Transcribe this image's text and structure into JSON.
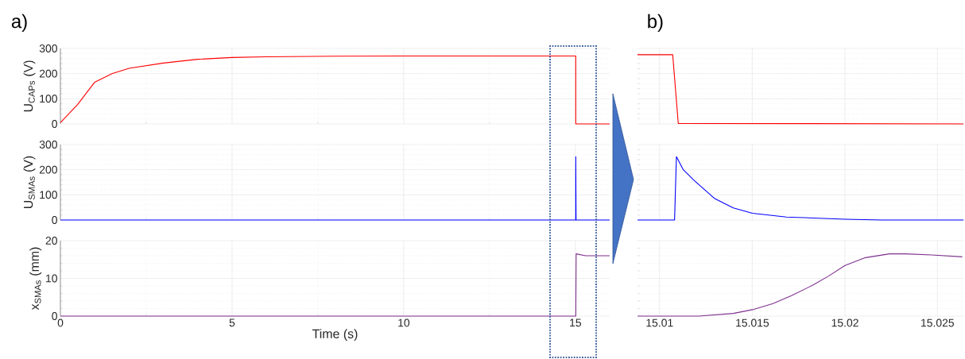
{
  "chart_data": [
    {
      "type": "line",
      "title": "a)",
      "ylabel": "U$_{CAPs}$ (V)",
      "xlim": [
        0,
        16
      ],
      "xticks": [
        0,
        5,
        10,
        15
      ],
      "ylim": [
        0,
        300
      ],
      "yticks": [
        0,
        100,
        200,
        300
      ],
      "grid": true,
      "tick_labels": "y",
      "series": [
        {
          "color": "#ff0000",
          "x": [
            0,
            0.5,
            1,
            1.5,
            2,
            3,
            4,
            5,
            6,
            8,
            10,
            15.011,
            15.011,
            16
          ],
          "values": [
            5,
            77,
            166,
            200,
            221,
            242,
            257,
            264,
            267,
            269,
            270,
            270,
            0,
            0
          ]
        }
      ]
    },
    {
      "type": "line",
      "ylabel": "U$_{SMAs}$ (V)",
      "xlim": [
        0,
        16
      ],
      "xticks": [
        0,
        5,
        10,
        15
      ],
      "ylim": [
        0,
        300
      ],
      "yticks": [
        0,
        100,
        200,
        300
      ],
      "grid": true,
      "tick_labels": "y",
      "series": [
        {
          "color": "#0000ff",
          "x": [
            0,
            15.0108,
            15.011,
            15.02,
            16
          ],
          "values": [
            0,
            0,
            252,
            0,
            0
          ]
        }
      ]
    },
    {
      "type": "line",
      "xlabel": "Time (s)",
      "ylabel": "x$_{SMAs}$ (mm)",
      "xlim": [
        0,
        16
      ],
      "xticks": [
        0,
        5,
        10,
        15
      ],
      "ylim": [
        0,
        20
      ],
      "yticks": [
        0,
        10,
        20
      ],
      "grid": true,
      "series": [
        {
          "color": "#7e2f8e",
          "x": [
            0,
            15.012,
            15.023,
            15.3,
            16
          ],
          "values": [
            0,
            0,
            16.5,
            16,
            16
          ]
        }
      ]
    },
    {
      "type": "line",
      "title": "b)",
      "xlim": [
        15.0088,
        15.0264
      ],
      "xticks": [
        15.01,
        15.015,
        15.02,
        15.025
      ],
      "ylim": [
        0,
        300
      ],
      "yticks": [
        0,
        100,
        200,
        300
      ],
      "grid": true,
      "tick_labels": false,
      "series": [
        {
          "color": "#ff0000",
          "x": [
            15.0088,
            15.0107,
            15.011,
            15.0264
          ],
          "values": [
            275,
            275,
            2,
            0
          ]
        }
      ]
    },
    {
      "type": "line",
      "xlim": [
        15.0088,
        15.0264
      ],
      "xticks": [
        15.01,
        15.015,
        15.02,
        15.025
      ],
      "ylim": [
        0,
        300
      ],
      "yticks": [
        0,
        100,
        200,
        300
      ],
      "grid": true,
      "tick_labels": false,
      "series": [
        {
          "color": "#0000ff",
          "x": [
            15.0088,
            15.0108,
            15.0109,
            15.01126,
            15.01183,
            15.01297,
            15.01397,
            15.015,
            15.01683,
            15.02,
            15.022,
            15.0264
          ],
          "values": [
            0,
            0,
            252,
            201,
            159,
            85,
            48,
            27,
            12,
            3,
            0,
            0
          ]
        }
      ]
    },
    {
      "type": "line",
      "xlim": [
        15.0088,
        15.0264
      ],
      "xticks": [
        15.01,
        15.015,
        15.02,
        15.025
      ],
      "ylim": [
        0,
        20
      ],
      "yticks": [
        0,
        10,
        20
      ],
      "grid": true,
      "tick_labels": "x",
      "series": [
        {
          "color": "#7e2f8e",
          "x": [
            15.0088,
            15.0121,
            15.01397,
            15.015,
            15.01611,
            15.01711,
            15.01826,
            15.01911,
            15.02,
            15.02111,
            15.0224,
            15.02326,
            15.02469,
            15.02633
          ],
          "values": [
            0,
            0,
            0.7,
            1.7,
            3.3,
            5.4,
            8.2,
            10.6,
            13.4,
            15.5,
            16.5,
            16.5,
            16.2,
            15.7
          ]
        }
      ]
    }
  ]
}
